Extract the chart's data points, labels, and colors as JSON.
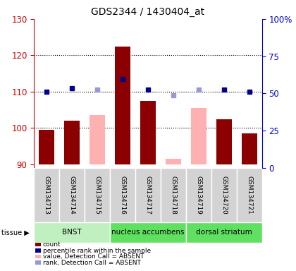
{
  "title": "GDS2344 / 1430404_at",
  "samples": [
    "GSM134713",
    "GSM134714",
    "GSM134715",
    "GSM134716",
    "GSM134717",
    "GSM134718",
    "GSM134719",
    "GSM134720",
    "GSM134721"
  ],
  "count_values": [
    99.5,
    102.0,
    null,
    122.5,
    107.5,
    null,
    null,
    102.5,
    98.5
  ],
  "rank_values": [
    110.0,
    111.0,
    null,
    113.5,
    110.5,
    null,
    null,
    110.5,
    110.0
  ],
  "absent_value_values": [
    null,
    null,
    103.5,
    null,
    null,
    91.5,
    105.5,
    null,
    null
  ],
  "absent_rank_values": [
    null,
    null,
    110.5,
    null,
    null,
    109.0,
    110.5,
    null,
    null
  ],
  "ylim_left": [
    89,
    130
  ],
  "ylim_right": [
    0,
    100
  ],
  "yticks_left": [
    90,
    100,
    110,
    120,
    130
  ],
  "yticks_right": [
    0,
    25,
    50,
    75,
    100
  ],
  "ytick_labels_right": [
    "0",
    "25",
    "50",
    "75",
    "100%"
  ],
  "bar_bottom": 90,
  "tissue_groups": [
    {
      "label": "BNST",
      "start": 0,
      "end": 3,
      "color": "#c0f0c0"
    },
    {
      "label": "nucleus accumbens",
      "start": 3,
      "end": 6,
      "color": "#60e060"
    },
    {
      "label": "dorsal striatum",
      "start": 6,
      "end": 9,
      "color": "#60e060"
    }
  ],
  "bar_color_count": "#8B0000",
  "bar_color_absent_value": "#ffb0b0",
  "dot_color_rank": "#00008B",
  "dot_color_absent_rank": "#9898d8",
  "axis_left_color": "#cc0000",
  "axis_right_color": "#0000cc",
  "background_color": "#ffffff",
  "bar_width": 0.6,
  "legend_items": [
    {
      "color": "#8B0000",
      "label": "count"
    },
    {
      "color": "#00008B",
      "label": "percentile rank within the sample"
    },
    {
      "color": "#ffb0b0",
      "label": "value, Detection Call = ABSENT"
    },
    {
      "color": "#9898d8",
      "label": "rank, Detection Call = ABSENT"
    }
  ]
}
